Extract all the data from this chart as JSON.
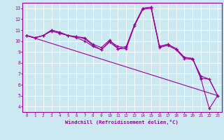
{
  "bg_color": "#cce8f0",
  "line_color": "#990099",
  "grid_color": "#ffffff",
  "xlabel": "Windchill (Refroidissement éolien,°C)",
  "xlabel_color": "#990099",
  "tick_color": "#990099",
  "spine_color": "#990099",
  "xmin": -0.5,
  "xmax": 23.5,
  "ymin": 3.5,
  "ymax": 13.5,
  "yticks": [
    4,
    5,
    6,
    7,
    8,
    9,
    10,
    11,
    12,
    13
  ],
  "xticks": [
    0,
    1,
    2,
    3,
    4,
    5,
    6,
    7,
    8,
    9,
    10,
    11,
    12,
    13,
    14,
    15,
    16,
    17,
    18,
    19,
    20,
    21,
    22,
    23
  ],
  "line1_x": [
    0,
    1,
    2,
    3,
    4,
    5,
    6,
    7,
    8,
    9,
    10,
    11,
    12,
    13,
    14,
    15,
    16,
    17,
    18,
    19,
    20,
    21,
    22,
    23
  ],
  "line1_y": [
    10.5,
    10.3,
    10.5,
    11.0,
    10.8,
    10.5,
    10.4,
    10.3,
    9.7,
    9.4,
    10.1,
    9.3,
    9.5,
    11.5,
    13.0,
    13.1,
    9.5,
    9.7,
    9.3,
    8.5,
    8.4,
    6.6,
    6.5,
    5.0
  ],
  "line2_x": [
    0,
    1,
    2,
    3,
    4,
    5,
    6,
    7,
    8,
    9,
    10,
    11,
    12,
    13,
    14,
    15,
    16,
    17,
    18,
    19,
    20,
    21,
    22,
    23
  ],
  "line2_y": [
    10.5,
    10.3,
    10.5,
    11.0,
    10.8,
    10.5,
    10.4,
    10.2,
    9.6,
    9.2,
    10.0,
    9.5,
    9.4,
    11.5,
    13.0,
    13.1,
    9.5,
    9.7,
    9.3,
    8.5,
    8.4,
    6.5,
    3.8,
    5.0
  ],
  "line3_x": [
    0,
    1,
    2,
    3,
    4,
    5,
    6,
    7,
    8,
    9,
    10,
    11,
    12,
    13,
    14,
    15,
    16,
    17,
    18,
    19,
    20,
    21,
    22,
    23
  ],
  "line3_y": [
    10.5,
    10.3,
    10.5,
    10.9,
    10.7,
    10.5,
    10.3,
    10.0,
    9.5,
    9.2,
    9.9,
    9.3,
    9.3,
    11.4,
    12.9,
    13.0,
    9.4,
    9.6,
    9.2,
    8.4,
    8.3,
    6.8,
    6.5,
    5.0
  ],
  "line4_x": [
    0,
    23
  ],
  "line4_y": [
    10.5,
    5.0
  ],
  "marker_size": 2.0,
  "line_width": 0.8,
  "tick_fontsize": 4.2,
  "ylabel_fontsize": 4.8,
  "xlabel_fontsize": 5.2
}
